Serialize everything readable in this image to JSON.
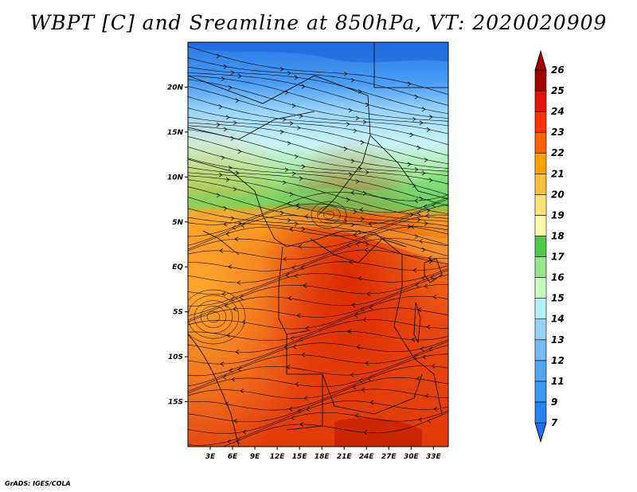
{
  "title": "WBPT [C] and Sreamline at 850hPa, VT: 2020020909",
  "footer": "GrADS: IGES/COLA",
  "map": {
    "lon_range": [
      0,
      35
    ],
    "lat_range": [
      -20,
      25
    ],
    "lat_ticks": [
      {
        "value": 20,
        "label": "20N"
      },
      {
        "value": 15,
        "label": "15N"
      },
      {
        "value": 10,
        "label": "10N"
      },
      {
        "value": 5,
        "label": "5N"
      },
      {
        "value": 0,
        "label": "EQ"
      },
      {
        "value": -5,
        "label": "5S"
      },
      {
        "value": -10,
        "label": "10S"
      },
      {
        "value": -15,
        "label": "15S"
      }
    ],
    "lon_ticks": [
      {
        "value": 3,
        "label": "3E"
      },
      {
        "value": 6,
        "label": "6E"
      },
      {
        "value": 9,
        "label": "9E"
      },
      {
        "value": 12,
        "label": "12E"
      },
      {
        "value": 15,
        "label": "15E"
      },
      {
        "value": 18,
        "label": "18E"
      },
      {
        "value": 21,
        "label": "21E"
      },
      {
        "value": 24,
        "label": "24E"
      },
      {
        "value": 27,
        "label": "27E"
      },
      {
        "value": 30,
        "label": "30E"
      },
      {
        "value": 33,
        "label": "33E"
      }
    ]
  },
  "colorbar": {
    "levels": [
      "7",
      "9",
      "11",
      "12",
      "13",
      "14",
      "15",
      "16",
      "17",
      "18",
      "19",
      "20",
      "21",
      "22",
      "23",
      "24",
      "25",
      "26"
    ],
    "colors": [
      "#1e6ee6",
      "#2882f0",
      "#3c96f5",
      "#50a5f5",
      "#78b9fa",
      "#96d2fa",
      "#b4f0fa",
      "#c8ffbe",
      "#96e68c",
      "#50c84b",
      "#fffaaa",
      "#ffe178",
      "#ffc03c",
      "#ffa000",
      "#ff6000",
      "#ff3200",
      "#e11400",
      "#a50000"
    ]
  }
}
